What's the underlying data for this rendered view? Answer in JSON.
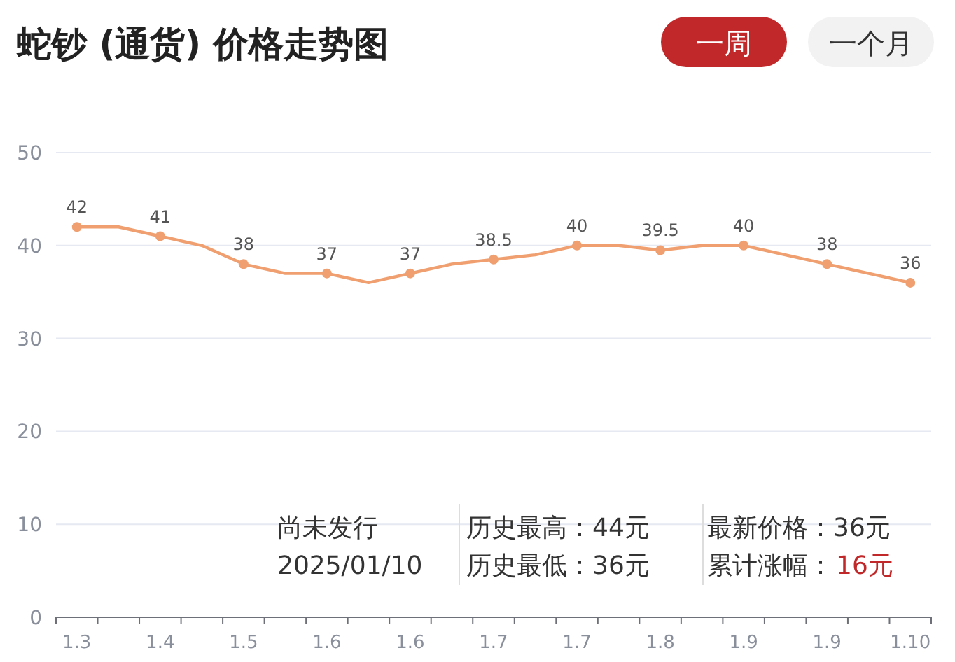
{
  "chart_data": {
    "type": "line",
    "title": "蛇钞 (通货) 价格走势图",
    "categories": [
      "1.3",
      null,
      "1.4",
      null,
      "1.5",
      null,
      "1.6",
      null,
      "1.6",
      null,
      "1.7",
      null,
      "1.7",
      null,
      "1.8",
      null,
      "1.9",
      null,
      "1.9",
      null,
      "1.10"
    ],
    "values": [
      42,
      42,
      41,
      40,
      38,
      37,
      37,
      36,
      37,
      38,
      38.5,
      39,
      40,
      40,
      39.5,
      40,
      40,
      39,
      38,
      37,
      36
    ],
    "value_labels": [
      "42",
      null,
      "41",
      null,
      "38",
      null,
      "37",
      null,
      "37",
      null,
      "38.5",
      null,
      "40",
      null,
      "39.5",
      null,
      "40",
      null,
      "38",
      null,
      "36"
    ],
    "color": "#f0a070",
    "marker": "circle",
    "line_style": "solid",
    "grid": "y",
    "ylim": [
      0,
      50
    ],
    "yticks": [
      0,
      10,
      20,
      30,
      40,
      50
    ],
    "annotations": [
      "一周",
      "一个月",
      "尚未发行",
      "2025/01/10",
      "历史最高：44元",
      "历史最低：36元",
      "最新价格：36元",
      "累计涨幅：",
      "16元"
    ]
  }
}
